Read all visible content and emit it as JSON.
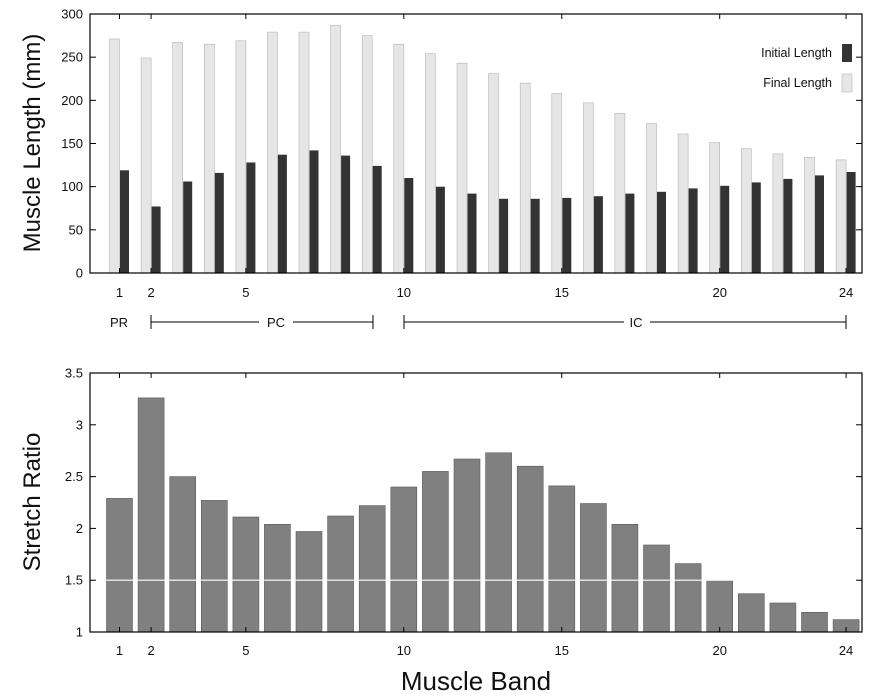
{
  "chart_data": [
    {
      "type": "bar",
      "ylabel": "Muscle Length (mm)",
      "xlabel": "",
      "ylim": [
        0,
        300
      ],
      "yticks": [
        "0",
        "50",
        "100",
        "150",
        "200",
        "250",
        "300"
      ],
      "xticks": [
        "1",
        "2",
        "5",
        "10",
        "15",
        "20",
        "24"
      ],
      "categories": [
        1,
        2,
        3,
        4,
        5,
        6,
        7,
        8,
        9,
        10,
        11,
        12,
        13,
        14,
        15,
        16,
        17,
        18,
        19,
        20,
        21,
        22,
        23,
        24
      ],
      "series": [
        {
          "name": "Initial Length",
          "color": "#333333",
          "values": [
            119,
            77,
            106,
            116,
            128,
            137,
            142,
            136,
            124,
            110,
            100,
            92,
            86,
            86,
            87,
            89,
            92,
            94,
            98,
            101,
            105,
            109,
            113,
            117
          ]
        },
        {
          "name": "Final Length",
          "color": "#e6e6e6",
          "values": [
            271,
            249,
            267,
            265,
            269,
            279,
            279,
            287,
            275,
            265,
            254,
            243,
            231,
            220,
            208,
            197,
            185,
            173,
            161,
            151,
            144,
            138,
            134,
            131
          ]
        }
      ],
      "legend_position": "top-right",
      "groups": [
        {
          "label": "PR",
          "from": 1,
          "to": 1
        },
        {
          "label": "PC",
          "from": 2,
          "to": 9
        },
        {
          "label": "IC",
          "from": 10,
          "to": 24
        }
      ]
    },
    {
      "type": "bar",
      "ylabel": "Stretch Ratio",
      "xlabel": "Muscle Band",
      "ylim": [
        1,
        3.5
      ],
      "yticks": [
        "1",
        "1.5",
        "2",
        "2.5",
        "3",
        "3.5"
      ],
      "xticks": [
        "1",
        "2",
        "5",
        "10",
        "15",
        "20",
        "24"
      ],
      "categories": [
        1,
        2,
        3,
        4,
        5,
        6,
        7,
        8,
        9,
        10,
        11,
        12,
        13,
        14,
        15,
        16,
        17,
        18,
        19,
        20,
        21,
        22,
        23,
        24
      ],
      "series": [
        {
          "color": "#808080",
          "values": [
            2.29,
            3.26,
            2.5,
            2.27,
            2.11,
            2.04,
            1.97,
            2.12,
            2.22,
            2.4,
            2.55,
            2.67,
            2.73,
            2.6,
            2.41,
            2.24,
            2.04,
            1.84,
            1.66,
            1.5,
            1.37,
            1.28,
            1.19,
            1.12
          ]
        }
      ],
      "reference_line": 1.5
    }
  ]
}
